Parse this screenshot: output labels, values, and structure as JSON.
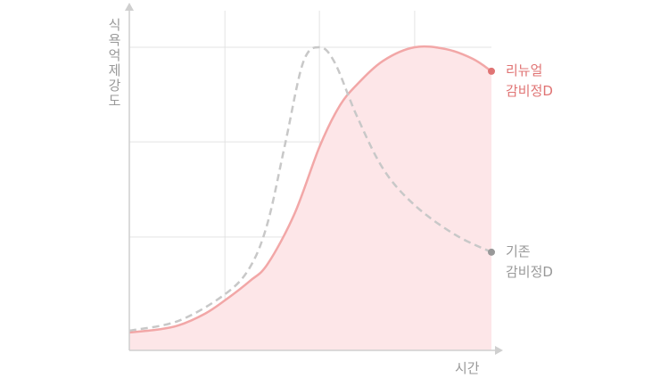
{
  "chart_data": {
    "type": "line",
    "ylabel": "식욕억제강도",
    "xlabel": "시간",
    "xlim": [
      0,
      100
    ],
    "ylim": [
      0,
      100
    ],
    "xgrid": [
      26.4,
      52.5,
      78.8
    ],
    "ygrid": [
      37.4,
      68.8,
      100
    ],
    "series": [
      {
        "name": "리뉴얼\n감비정D",
        "color": "#f2a7a7",
        "label_color": "#e07474",
        "fill": "#fde6e8",
        "dashed": false,
        "x": [
          0,
          7.4,
          13.5,
          20.9,
          26.4,
          33.3,
          38.2,
          45.6,
          52.5,
          57.9,
          62.8,
          70.2,
          78.8,
          87.4,
          94.8,
          100
        ],
        "values": [
          5.9,
          6.8,
          8.2,
          12.1,
          16.5,
          22.9,
          28.5,
          45,
          67.1,
          80.3,
          87.6,
          95.6,
          100,
          99.4,
          96.2,
          92.1
        ]
      },
      {
        "name": "기존\n감비정D",
        "color": "#c8c8c8",
        "label_color": "#999999",
        "fill": null,
        "dashed": true,
        "x": [
          0,
          13.5,
          26.4,
          33.3,
          38.2,
          43.1,
          48,
          52.5,
          56.7,
          62.8,
          70.2,
          78.8,
          89.9,
          100
        ],
        "values": [
          6.5,
          9.7,
          18.5,
          27.4,
          42.1,
          68.5,
          95,
          100,
          95,
          77.4,
          59.7,
          47.9,
          38.2,
          32.4
        ]
      }
    ]
  }
}
